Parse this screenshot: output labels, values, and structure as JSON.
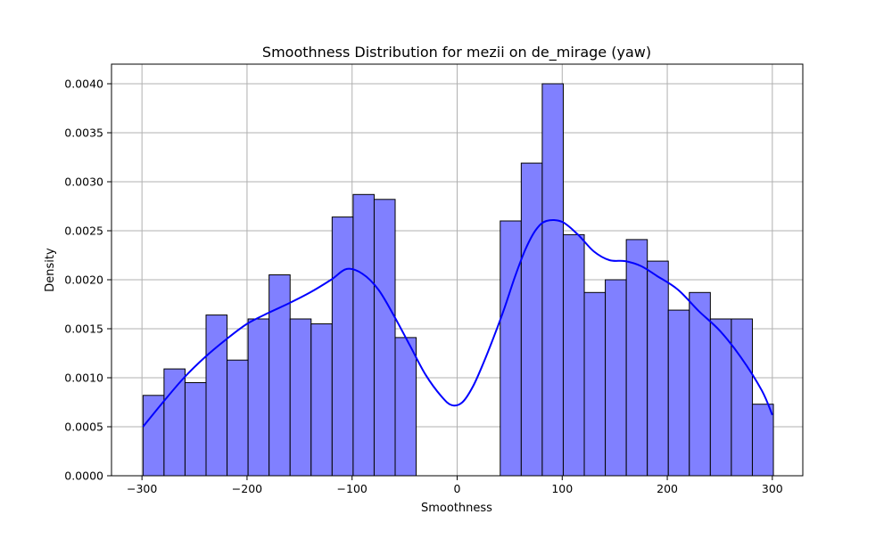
{
  "chart_data": {
    "type": "bar",
    "title": "Smoothness Distribution for mezii on de_mirage (yaw)",
    "xlabel": "Smoothness",
    "ylabel": "Density",
    "xlim": [
      -329,
      329
    ],
    "ylim": [
      0,
      0.0042
    ],
    "grid": true,
    "x_ticks": [
      -300,
      -200,
      -100,
      0,
      100,
      200,
      300
    ],
    "x_tick_labels": [
      "−300",
      "−200",
      "−100",
      "0",
      "100",
      "200",
      "300"
    ],
    "y_ticks": [
      0,
      0.0005,
      0.001,
      0.0015,
      0.002,
      0.0025,
      0.003,
      0.0035,
      0.004
    ],
    "y_tick_labels": [
      "0.0000",
      "0.0005",
      "0.0010",
      "0.0015",
      "0.0020",
      "0.0025",
      "0.0030",
      "0.0035",
      "0.0040"
    ],
    "bar_color": "#8080ff",
    "bar_edge_color": "#000000",
    "kde_color": "#0000ff",
    "bin_edges": [
      -299,
      -279,
      -259,
      -239,
      -219,
      -199,
      -179,
      -159,
      -139,
      -119,
      -99,
      -79,
      -59,
      -39,
      -19,
      1,
      21,
      41,
      61,
      81,
      101,
      121,
      141,
      161,
      181,
      201,
      221,
      241,
      261,
      281,
      301
    ],
    "values": [
      0.00082,
      0.00109,
      0.00095,
      0.00164,
      0.00118,
      0.0016,
      0.00205,
      0.0016,
      0.00155,
      0.00264,
      0.00287,
      0.00282,
      0.00141,
      0,
      0,
      0,
      0,
      0.0026,
      0.00319,
      0.004,
      0.00246,
      0.00187,
      0.002,
      0.00241,
      0.00219,
      0.00169,
      0.00187,
      0.0016,
      0.0016,
      0.00073
    ],
    "kde": {
      "x": [
        -299,
        -280,
        -260,
        -240,
        -220,
        -200,
        -180,
        -160,
        -140,
        -120,
        -105,
        -90,
        -75,
        -60,
        -45,
        -30,
        -15,
        -5,
        5,
        15,
        25,
        35,
        45,
        55,
        65,
        75,
        85,
        100,
        115,
        130,
        145,
        160,
        175,
        190,
        210,
        230,
        250,
        270,
        290,
        300
      ],
      "y": [
        0.0005,
        0.00075,
        0.001,
        0.00121,
        0.00139,
        0.00155,
        0.00166,
        0.00176,
        0.00187,
        0.002,
        0.00211,
        0.00206,
        0.0019,
        0.00163,
        0.00133,
        0.00103,
        0.00081,
        0.00072,
        0.00075,
        0.00091,
        0.00115,
        0.00142,
        0.00171,
        0.00203,
        0.00231,
        0.00251,
        0.0026,
        0.00259,
        0.00246,
        0.00229,
        0.0022,
        0.00219,
        0.00214,
        0.00204,
        0.0019,
        0.00168,
        0.00148,
        0.00121,
        0.00087,
        0.00062
      ]
    }
  }
}
